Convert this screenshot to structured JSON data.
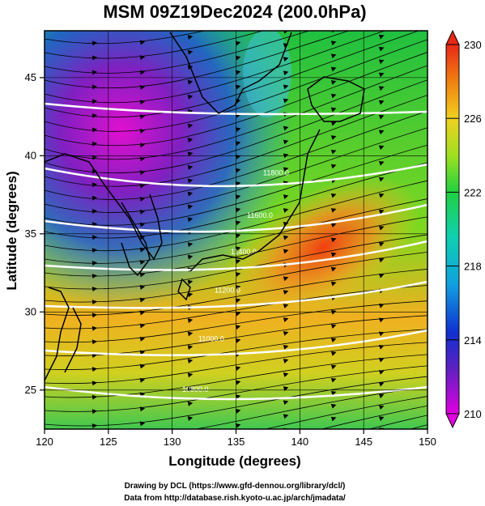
{
  "chart_data": {
    "type": "heatmap",
    "title": "MSM 09Z19Dec2024 (200.0hPa)",
    "xlabel": "Longitude (degrees)",
    "ylabel": "Latitude  (degrees)",
    "xlim": [
      120,
      150
    ],
    "ylim": [
      22.5,
      48
    ],
    "x_ticks": [
      "120",
      "125",
      "130",
      "135",
      "140",
      "145",
      "150"
    ],
    "y_ticks": [
      "25",
      "30",
      "35",
      "40",
      "45"
    ],
    "colorbar": {
      "min": 210,
      "max": 230,
      "ticks": [
        "230",
        "226",
        "222",
        "218",
        "214",
        "210"
      ],
      "extend": "both"
    },
    "grid": true,
    "contour_labels": [
      "11800.0",
      "11600.0",
      "11400.0",
      "11200.0",
      "11000.0",
      "10800.0"
    ],
    "credits": [
      "Drawing by DCL (https://www.gfd-dennou.org/library/dcl/)",
      "Data from http://database.rish.kyoto-u.ac.jp/arch/jmadata/"
    ]
  }
}
